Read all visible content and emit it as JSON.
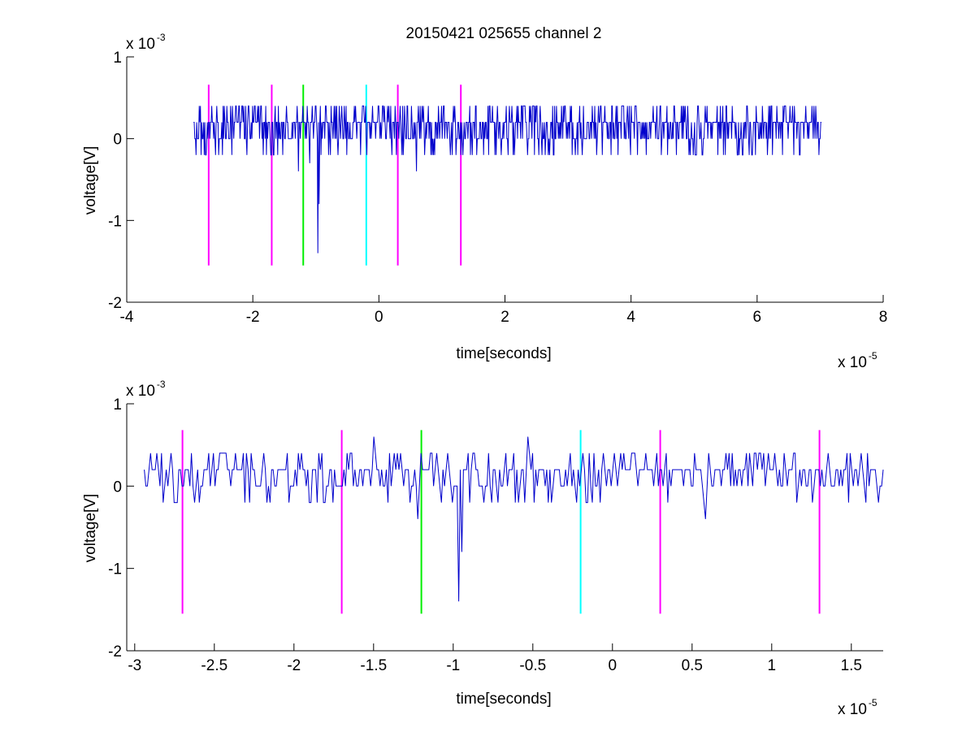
{
  "figure_title": "20150421 025655 channel 2",
  "colors": {
    "signal": "#0000cc",
    "magenta": "#ff00ff",
    "green": "#00ee00",
    "cyan": "#00ffff",
    "axis": "#000000"
  },
  "chart_data": [
    {
      "type": "line",
      "title": "20150421 025655 channel 2",
      "xlabel": "time[seconds]",
      "ylabel": "voltage[V]",
      "xlim": [
        -4e-05,
        8e-05
      ],
      "ylim": [
        -0.002,
        0.001
      ],
      "x_ticks": [
        -4e-05,
        -2e-05,
        0,
        2e-05,
        4e-05,
        6e-05,
        8e-05
      ],
      "x_tick_labels": [
        "-4",
        "-2",
        "0",
        "2",
        "4",
        "6",
        "8"
      ],
      "y_ticks": [
        -0.002,
        -0.001,
        0,
        0.001
      ],
      "y_tick_labels": [
        "-2",
        "-1",
        "0",
        "1"
      ],
      "x_multiplier": {
        "base": "x 10",
        "exp": "-5"
      },
      "y_multiplier": {
        "base": "x 10",
        "exp": "-3"
      },
      "grid": false,
      "series": [
        {
          "style": "noise-trace",
          "color": "#0000cc",
          "x_range": [
            -2.94e-05,
            7.02e-05
          ],
          "baseline_levels_V": [
            0,
            0.0002,
            0.0004,
            -0.0002
          ],
          "features": [
            {
              "x": -1.28e-05,
              "y": -0.0004
            },
            {
              "x": -1.1e-05,
              "y": -0.0003
            },
            {
              "x": -9.7e-06,
              "y": -0.0014
            },
            {
              "x": -9.5e-06,
              "y": -0.0008
            },
            {
              "x": 6e-06,
              "y": -0.0004
            }
          ]
        }
      ],
      "markers": [
        {
          "x": -2.7e-05,
          "color": "#ff00ff",
          "y_range": [
            -0.00155,
            0.00066
          ]
        },
        {
          "x": -1.7e-05,
          "color": "#ff00ff",
          "y_range": [
            -0.00155,
            0.00066
          ]
        },
        {
          "x": -1.2e-05,
          "color": "#00ee00",
          "y_range": [
            -0.00155,
            0.00066
          ]
        },
        {
          "x": -2e-06,
          "color": "#00ffff",
          "y_range": [
            -0.00155,
            0.00066
          ]
        },
        {
          "x": 3e-06,
          "color": "#ff00ff",
          "y_range": [
            -0.00155,
            0.00066
          ]
        },
        {
          "x": 1.3e-05,
          "color": "#ff00ff",
          "y_range": [
            -0.00155,
            0.00066
          ]
        }
      ]
    },
    {
      "type": "line",
      "title": "",
      "xlabel": "time[seconds]",
      "ylabel": "voltage[V]",
      "xlim": [
        -3.05e-05,
        1.7e-05
      ],
      "ylim": [
        -0.002,
        0.001
      ],
      "x_ticks": [
        -3e-05,
        -2.5e-05,
        -2e-05,
        -1.5e-05,
        -1e-05,
        -5e-06,
        0,
        5e-06,
        1e-05,
        1.5e-05
      ],
      "x_tick_labels": [
        "-3",
        "-2.5",
        "-2",
        "-1.5",
        "-1",
        "-0.5",
        "0",
        "0.5",
        "1",
        "1.5"
      ],
      "y_ticks": [
        -0.002,
        -0.001,
        0,
        0.001
      ],
      "y_tick_labels": [
        "-2",
        "-1",
        "0",
        "1"
      ],
      "x_multiplier": {
        "base": "x 10",
        "exp": "-5"
      },
      "y_multiplier": {
        "base": "x 10",
        "exp": "-3"
      },
      "grid": false,
      "series": [
        {
          "style": "noise-trace",
          "color": "#0000cc",
          "x_range": [
            -2.94e-05,
            1.7e-05
          ],
          "baseline_levels_V": [
            0,
            0.0002,
            0.0004,
            -0.0002
          ],
          "features": [
            {
              "x": -1.5e-05,
              "y": 0.0006
            },
            {
              "x": -1.22e-05,
              "y": -0.0004
            },
            {
              "x": -9.7e-06,
              "y": -0.0014
            },
            {
              "x": -9.5e-06,
              "y": -0.0008
            },
            {
              "x": -5.3e-06,
              "y": 0.0006
            },
            {
              "x": 5.8e-06,
              "y": -0.0004
            }
          ]
        }
      ],
      "markers": [
        {
          "x": -2.7e-05,
          "color": "#ff00ff",
          "y_range": [
            -0.00155,
            0.00068
          ]
        },
        {
          "x": -1.7e-05,
          "color": "#ff00ff",
          "y_range": [
            -0.00155,
            0.00068
          ]
        },
        {
          "x": -1.2e-05,
          "color": "#00ee00",
          "y_range": [
            -0.00155,
            0.00068
          ]
        },
        {
          "x": -2e-06,
          "color": "#00ffff",
          "y_range": [
            -0.00155,
            0.00068
          ]
        },
        {
          "x": 3e-06,
          "color": "#ff00ff",
          "y_range": [
            -0.00155,
            0.00068
          ]
        },
        {
          "x": 1.3e-05,
          "color": "#ff00ff",
          "y_range": [
            -0.00155,
            0.00068
          ]
        }
      ]
    }
  ]
}
